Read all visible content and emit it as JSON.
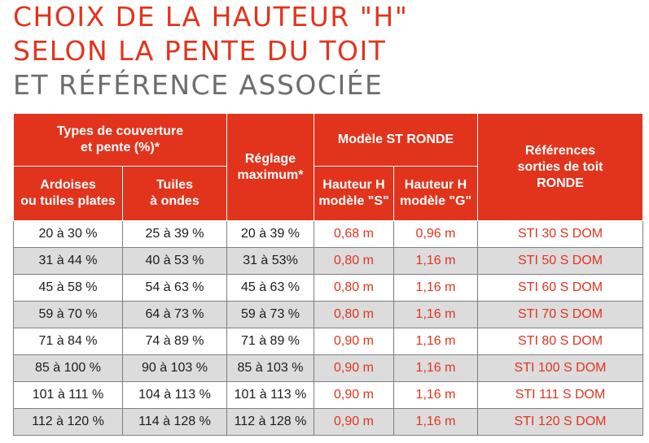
{
  "title": {
    "line1": "CHOIX DE LA HAUTEUR \"H\"",
    "line2": "SELON LA PENTE DU TOIT",
    "line3": "ET RÉFÉRENCE ASSOCIÉE"
  },
  "colors": {
    "accent": "#e2341d",
    "subtitle": "#6d6d6d",
    "row_shade": "#dcdcdc"
  },
  "header": {
    "group_types": "Types de couverture\net pente (%)*",
    "ardoises": "Ardoises\nou tuiles plates",
    "tuiles": "Tuiles\nà ondes",
    "reglage": "Réglage\nmaximum*",
    "group_modele": "Modèle ST RONDE",
    "hauteur_s": "Hauteur H\nmodèle \"S\"",
    "hauteur_g": "Hauteur H\nmodèle \"G\"",
    "references": "Références\nsorties de toit\nRONDE"
  },
  "rows": [
    {
      "ardoises": "20 à 30 %",
      "tuiles": "25 à 39 %",
      "reglage": "20 à 39 %",
      "hs": "0,68 m",
      "hg": "0,96 m",
      "ref": "STI 30 S DOM"
    },
    {
      "ardoises": "31 à 44 %",
      "tuiles": "40 à 53 %",
      "reglage": "31 à 53%",
      "hs": "0,80 m",
      "hg": "1,16 m",
      "ref": "STI 50 S DOM"
    },
    {
      "ardoises": "45 à 58 %",
      "tuiles": "54 à 63 %",
      "reglage": "45 à 63 %",
      "hs": "0,80 m",
      "hg": "1,16 m",
      "ref": "STI 60 S DOM"
    },
    {
      "ardoises": "59 à 70 %",
      "tuiles": "64 à 73 %",
      "reglage": "59 à 73 %",
      "hs": "0,80 m",
      "hg": "1,16 m",
      "ref": "STI 70 S DOM"
    },
    {
      "ardoises": "71 à 84 %",
      "tuiles": "74 à 89 %",
      "reglage": "71 à 89 %",
      "hs": "0,90 m",
      "hg": "1,16 m",
      "ref": "STI 80 S DOM"
    },
    {
      "ardoises": "85 à 100 %",
      "tuiles": "90 à 103 %",
      "reglage": "85 à 103 %",
      "hs": "0,90 m",
      "hg": "1,16 m",
      "ref": "STI 100 S DOM"
    },
    {
      "ardoises": "101 à 111 %",
      "tuiles": "104 à 113 %",
      "reglage": "101 à 113 %",
      "hs": "0,90 m",
      "hg": "1,16 m",
      "ref": "STI 111 S DOM"
    },
    {
      "ardoises": "112 à 120 %",
      "tuiles": "114 à 128 %",
      "reglage": "112 à 128 %",
      "hs": "0,90 m",
      "hg": "1,16 m",
      "ref": "STI 120 S DOM"
    }
  ]
}
